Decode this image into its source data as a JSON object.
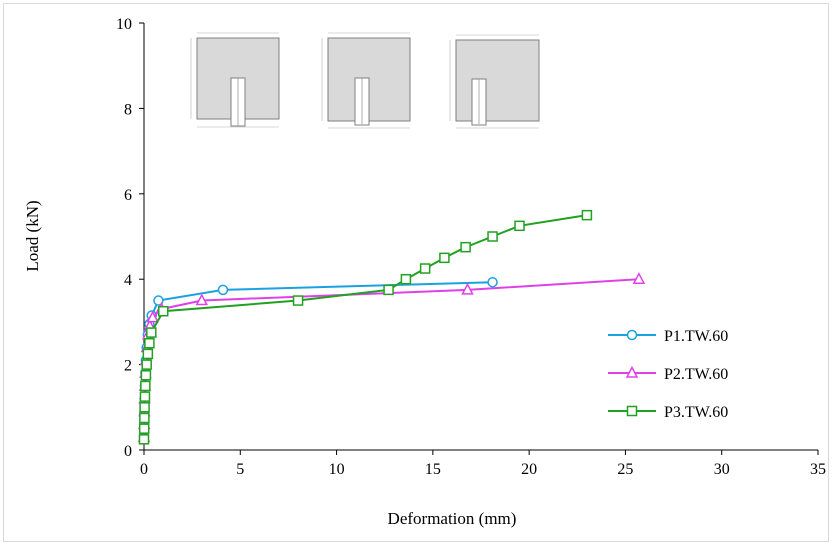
{
  "chart_data": {
    "type": "line",
    "title": "",
    "xlabel": "Deformation (mm)",
    "ylabel": "Load (kN)",
    "xlim": [
      0,
      35
    ],
    "ylim": [
      0,
      10
    ],
    "xticks": [
      "0",
      "5",
      "10",
      "15",
      "20",
      "25",
      "30",
      "35"
    ],
    "yticks": [
      "0",
      "2",
      "4",
      "6",
      "8",
      "10"
    ],
    "grid": false,
    "legend_position": "right",
    "series": [
      {
        "name": "P1.TW.60",
        "color": "#1ba1e2",
        "marker": "circle",
        "x": [
          0.0,
          0.01,
          0.02,
          0.03,
          0.05,
          0.07,
          0.1,
          0.14,
          0.2,
          0.28,
          0.4,
          0.75,
          4.1,
          18.1
        ],
        "y": [
          0.3,
          0.6,
          0.9,
          1.2,
          1.5,
          1.8,
          2.1,
          2.4,
          2.7,
          2.95,
          3.15,
          3.5,
          3.75,
          3.93
        ]
      },
      {
        "name": "P2.TW.60",
        "color": "#e040e8",
        "marker": "triangle",
        "x": [
          0.0,
          0.01,
          0.02,
          0.03,
          0.05,
          0.07,
          0.1,
          0.15,
          0.22,
          0.3,
          0.45,
          0.9,
          3.0,
          16.8,
          25.7
        ],
        "y": [
          0.3,
          0.6,
          0.9,
          1.2,
          1.5,
          1.8,
          2.1,
          2.4,
          2.7,
          2.9,
          3.1,
          3.3,
          3.5,
          3.75,
          4.0
        ]
      },
      {
        "name": "P3.TW.60",
        "color": "#22a022",
        "marker": "square",
        "x": [
          0.0,
          0.01,
          0.02,
          0.03,
          0.05,
          0.07,
          0.1,
          0.14,
          0.2,
          0.28,
          0.38,
          1.0,
          8.0,
          12.7,
          13.6,
          14.6,
          15.6,
          16.7,
          18.1,
          19.5,
          23.0
        ],
        "y": [
          0.25,
          0.5,
          0.75,
          1.0,
          1.25,
          1.5,
          1.75,
          2.0,
          2.25,
          2.5,
          2.75,
          3.25,
          3.5,
          3.75,
          4.0,
          4.25,
          4.5,
          4.75,
          5.0,
          5.25,
          5.5
        ]
      }
    ]
  }
}
